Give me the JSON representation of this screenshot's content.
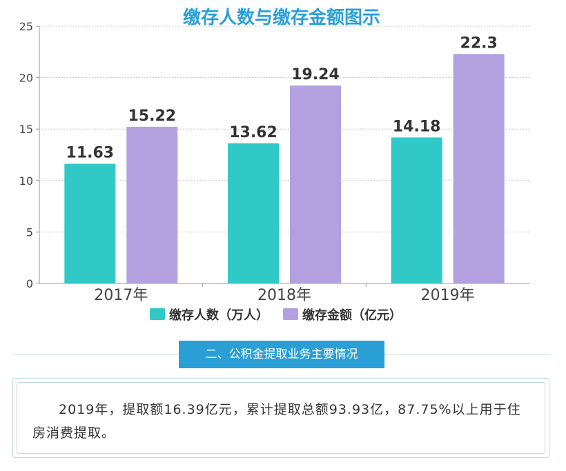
{
  "chart_data": {
    "type": "bar",
    "title": "缴存人数与缴存金额图示",
    "categories": [
      "2017年",
      "2018年",
      "2019年"
    ],
    "series": [
      {
        "name": "缴存人数（万人）",
        "values": [
          11.63,
          13.62,
          14.18
        ],
        "color": "#30c9c8"
      },
      {
        "name": "缴存金额（亿元）",
        "values": [
          15.22,
          19.24,
          22.3
        ],
        "color": "#b3a1df"
      }
    ],
    "value_labels": [
      [
        "11.63",
        "13.62",
        "14.18"
      ],
      [
        "15.22",
        "19.24",
        "22.3"
      ]
    ],
    "ylim": [
      0,
      25
    ],
    "yticks": [
      0,
      5,
      10,
      15,
      20,
      25
    ],
    "xlabel": "",
    "ylabel": "",
    "grid": true,
    "legend_position": "bottom"
  },
  "section": {
    "header": "二、公积金提取业务主要情况"
  },
  "summary": {
    "text": "2019年，提取额16.39亿元，累计提取总额93.93亿，87.75%以上用于住房消费提取。"
  },
  "colors": {
    "title": "#2a9fd6",
    "header_bg": "#2a9fd6",
    "border": "#bcd8e6"
  }
}
